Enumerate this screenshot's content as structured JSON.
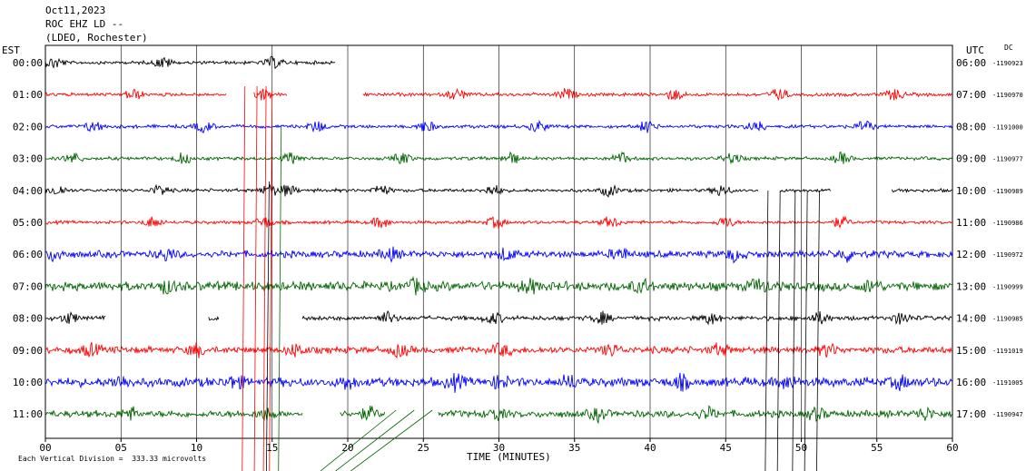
{
  "header": {
    "date": "Oct11,2023",
    "station": "ROC EHZ LD --",
    "network": "(LDEO, Rochester)"
  },
  "axes": {
    "left_zone": "EST",
    "right_zone": "UTC",
    "dc_label": "DC",
    "xlabel": "TIME (MINUTES)",
    "footer": "Each Vertical Division =  333.33 microvolts"
  },
  "chart_data": {
    "type": "line",
    "title": "",
    "xlabel": "TIME (MINUTES)",
    "xlim": [
      0,
      60
    ],
    "x_ticks": [
      "00",
      "05",
      "10",
      "15",
      "20",
      "25",
      "30",
      "35",
      "40",
      "45",
      "50",
      "55",
      "60"
    ],
    "grid": "vertical every 5 minutes",
    "rows": [
      {
        "est": "00:00",
        "utc": "06:00",
        "dc": "1190923",
        "color": "#000000",
        "segments": [
          [
            0,
            19.2
          ]
        ],
        "amp": 3
      },
      {
        "est": "01:00",
        "utc": "07:00",
        "dc": "1190970",
        "color": "#ff0000",
        "segments": [
          [
            0,
            12
          ],
          [
            13.8,
            16
          ],
          [
            21,
            60
          ]
        ],
        "amp": 3
      },
      {
        "est": "02:00",
        "utc": "08:00",
        "dc": "1191000",
        "color": "#0000ff",
        "segments": [
          [
            0,
            60
          ]
        ],
        "amp": 3
      },
      {
        "est": "03:00",
        "utc": "09:00",
        "dc": "1190977",
        "color": "#006400",
        "segments": [
          [
            0,
            60
          ]
        ],
        "amp": 3
      },
      {
        "est": "04:00",
        "utc": "10:00",
        "dc": "1190989",
        "color": "#000000",
        "segments": [
          [
            0,
            47.2
          ],
          [
            48.6,
            52
          ],
          [
            56,
            60
          ]
        ],
        "amp": 3
      },
      {
        "est": "05:00",
        "utc": "11:00",
        "dc": "1190986",
        "color": "#ff0000",
        "segments": [
          [
            0,
            60
          ]
        ],
        "amp": 3
      },
      {
        "est": "06:00",
        "utc": "12:00",
        "dc": "1190972",
        "color": "#0000ff",
        "segments": [
          [
            0,
            60
          ]
        ],
        "amp": 6
      },
      {
        "est": "07:00",
        "utc": "13:00",
        "dc": "1190999",
        "color": "#006400",
        "segments": [
          [
            0,
            60
          ]
        ],
        "amp": 8
      },
      {
        "est": "08:00",
        "utc": "14:00",
        "dc": "1190985",
        "color": "#000000",
        "segments": [
          [
            0,
            4
          ],
          [
            10.8,
            11.5
          ],
          [
            17,
            60
          ]
        ],
        "amp": 4
      },
      {
        "est": "09:00",
        "utc": "15:00",
        "dc": "1191019",
        "color": "#ff0000",
        "segments": [
          [
            0,
            60
          ]
        ],
        "amp": 6
      },
      {
        "est": "10:00",
        "utc": "16:00",
        "dc": "1191005",
        "color": "#0000ff",
        "segments": [
          [
            0,
            60
          ]
        ],
        "amp": 8
      },
      {
        "est": "11:00",
        "utc": "17:00",
        "dc": "1190947",
        "color": "#006400",
        "segments": [
          [
            0,
            17
          ],
          [
            19.5,
            22.5
          ],
          [
            26,
            60
          ]
        ],
        "amp": 6
      }
    ]
  }
}
